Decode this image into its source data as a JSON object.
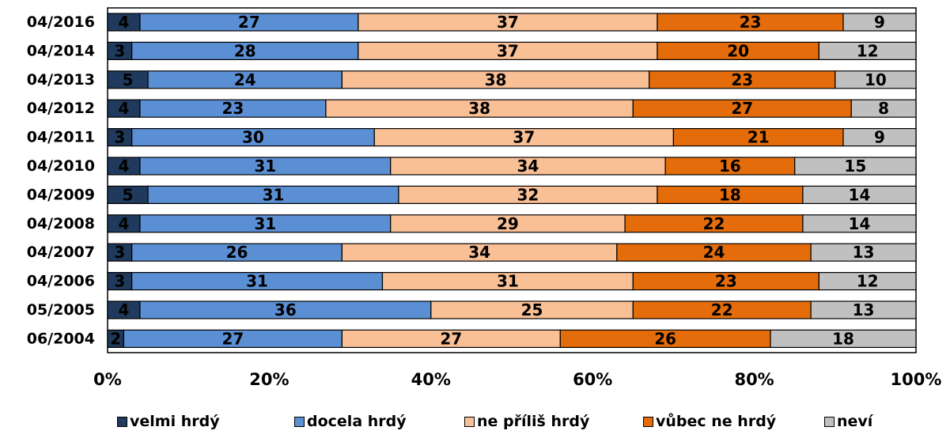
{
  "chart_data": {
    "type": "bar",
    "orientation": "horizontal-stacked-100",
    "categories": [
      "04/2016",
      "04/2014",
      "04/2013",
      "04/2012",
      "04/2011",
      "04/2010",
      "04/2009",
      "04/2008",
      "04/2007",
      "04/2006",
      "05/2005",
      "06/2004"
    ],
    "series": [
      {
        "name": "velmi hrdý",
        "color": "#1f3a5c",
        "values": [
          4,
          3,
          5,
          4,
          3,
          4,
          5,
          4,
          3,
          3,
          4,
          2
        ]
      },
      {
        "name": "docela hrdý",
        "color": "#5b8fd4",
        "values": [
          27,
          28,
          24,
          23,
          30,
          31,
          31,
          31,
          26,
          31,
          36,
          27
        ]
      },
      {
        "name": "ne příliš hrdý",
        "color": "#f9bf95",
        "values": [
          37,
          37,
          38,
          38,
          37,
          34,
          32,
          29,
          34,
          31,
          25,
          27
        ]
      },
      {
        "name": "vůbec ne hrdý",
        "color": "#e46c0a",
        "values": [
          23,
          20,
          23,
          27,
          21,
          16,
          18,
          22,
          24,
          23,
          22,
          26
        ]
      },
      {
        "name": "neví",
        "color": "#c0c0c0",
        "values": [
          9,
          12,
          10,
          8,
          9,
          15,
          14,
          14,
          13,
          12,
          13,
          18
        ]
      }
    ],
    "xlim": [
      0,
      100
    ],
    "x_ticks": [
      "0%",
      "20%",
      "40%",
      "60%",
      "80%",
      "100%"
    ],
    "grid": false,
    "legend": "bottom"
  }
}
